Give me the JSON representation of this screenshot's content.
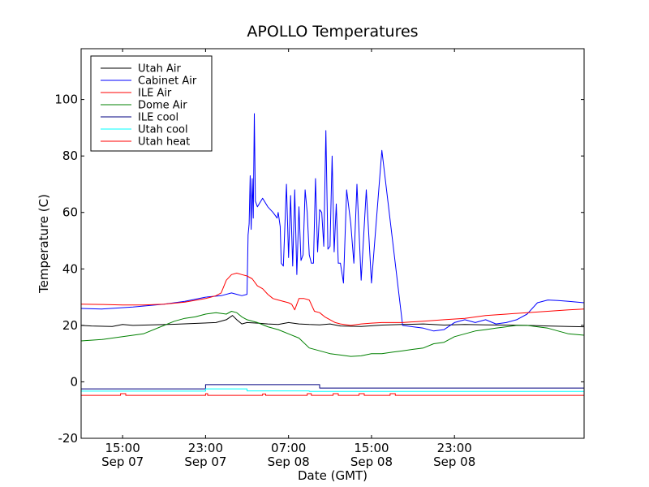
{
  "chart_data": {
    "type": "line",
    "title": "APOLLO Temperatures",
    "xlabel": "Date (GMT)",
    "ylabel": "Temperature (C)",
    "xlim": [
      11,
      59.5
    ],
    "ylim": [
      -20,
      118
    ],
    "yticks": [
      -20,
      0,
      20,
      40,
      60,
      80,
      100
    ],
    "xticks": [
      {
        "value": 15,
        "line1": "15:00",
        "line2": "Sep 07"
      },
      {
        "value": 23,
        "line1": "23:00",
        "line2": "Sep 07"
      },
      {
        "value": 31,
        "line1": "07:00",
        "line2": "Sep 08"
      },
      {
        "value": 39,
        "line1": "15:00",
        "line2": "Sep 08"
      },
      {
        "value": 47,
        "line1": "23:00",
        "line2": "Sep 08"
      }
    ],
    "legend_position": "top-left",
    "series": [
      {
        "name": "Utah Air",
        "color": "#000000",
        "x": [
          11,
          12,
          14,
          15,
          16,
          20,
          24,
          25,
          25.6,
          26,
          26.5,
          27,
          28,
          29,
          30,
          31,
          32,
          33,
          34,
          35,
          36,
          38,
          40,
          42,
          44,
          46,
          48,
          50,
          52,
          54,
          56,
          58,
          59.5
        ],
        "y": [
          20,
          19.8,
          19.6,
          20.3,
          20.0,
          20.4,
          21.0,
          22,
          23.5,
          22,
          20.5,
          21,
          20.8,
          20.5,
          20.3,
          21,
          20.5,
          20.3,
          20.2,
          20.5,
          19.8,
          19.6,
          20.1,
          20.3,
          20.5,
          20.1,
          20.3,
          20.2,
          20.1,
          20.0,
          19.8,
          19.6,
          19.5
        ]
      },
      {
        "name": "Cabinet Air",
        "color": "#0000ff",
        "x": [
          11,
          13,
          16,
          19,
          21,
          23,
          24.5,
          25.5,
          26,
          26.5,
          27,
          27.1,
          27.2,
          27.3,
          27.4,
          27.5,
          27.6,
          27.7,
          27.8,
          28,
          28.5,
          29,
          29.5,
          29.7,
          29.9,
          30,
          30.2,
          30.3,
          30.5,
          30.8,
          31,
          31.2,
          31.4,
          31.6,
          31.8,
          32,
          32.2,
          32.4,
          32.6,
          32.8,
          33,
          33.2,
          33.4,
          33.6,
          33.8,
          34,
          34.2,
          34.4,
          34.6,
          34.8,
          35,
          35.2,
          35.4,
          35.6,
          35.8,
          36,
          36.3,
          36.6,
          37,
          37.3,
          37.6,
          38,
          38.5,
          39,
          40,
          42,
          44,
          45,
          46,
          47,
          48,
          49,
          50,
          51,
          52,
          53,
          54,
          55,
          56,
          57,
          58,
          59.5
        ],
        "y": [
          26,
          25.8,
          26.5,
          27.5,
          28.5,
          30,
          30.5,
          31.5,
          31,
          30.5,
          31,
          52,
          56,
          73,
          54,
          72,
          58,
          95,
          64,
          62,
          65,
          62,
          60,
          59,
          58,
          60,
          55,
          42,
          41,
          70,
          44,
          66,
          41,
          68,
          38,
          62,
          43,
          45,
          68,
          60,
          45,
          42,
          42,
          72,
          46,
          61,
          60,
          48,
          89,
          47,
          48,
          80,
          46,
          63,
          42,
          42,
          35,
          68,
          56,
          42,
          70,
          36,
          68,
          35,
          82,
          20,
          19,
          18,
          18.5,
          21,
          22,
          21,
          22,
          20.5,
          21,
          22,
          24,
          28,
          29,
          28.8,
          28.5,
          28
        ]
      },
      {
        "name": "ILE Air",
        "color": "#ff0000",
        "x": [
          11,
          13,
          15,
          17,
          19,
          21,
          23,
          23.5,
          24,
          24.5,
          25,
          25.5,
          26,
          26.5,
          27,
          27.5,
          28,
          28.5,
          29,
          29.5,
          30,
          31,
          31.3,
          31.6,
          32,
          32.5,
          33,
          33.5,
          34,
          34.5,
          35,
          35.5,
          36,
          37,
          38,
          39,
          40,
          42,
          44,
          46,
          48,
          50,
          52,
          54,
          56,
          58,
          59.5
        ],
        "y": [
          27.5,
          27.4,
          27.2,
          27.2,
          27.5,
          28.2,
          29.5,
          30,
          30.5,
          31.5,
          36,
          38,
          38.5,
          38,
          37.5,
          36.5,
          34,
          33,
          31,
          29.5,
          29,
          28,
          27.5,
          25.5,
          29.5,
          29.5,
          29,
          25,
          24.5,
          23,
          22,
          21,
          20.5,
          20,
          20.5,
          20.8,
          21,
          21,
          21.5,
          22,
          22.5,
          23.5,
          24,
          24.5,
          25,
          25.5,
          25.8
        ]
      },
      {
        "name": "Dome Air",
        "color": "#008000",
        "x": [
          11,
          13,
          15,
          17,
          19,
          20,
          21,
          22,
          23,
          24,
          25,
          25.5,
          26,
          26.5,
          27,
          28,
          29,
          30,
          31,
          32,
          33,
          34,
          35,
          36,
          37,
          38,
          39,
          40,
          41,
          42,
          43,
          44,
          45,
          46,
          47,
          48,
          49,
          50,
          51,
          52,
          53,
          54,
          55,
          56,
          57,
          58,
          59.5
        ],
        "y": [
          14.5,
          15,
          16,
          17,
          20,
          21.5,
          22.5,
          23,
          24,
          24.5,
          24,
          25,
          24.5,
          23,
          22,
          21,
          19.5,
          18.5,
          17,
          15.5,
          12,
          11,
          10,
          9.5,
          9,
          9.2,
          10,
          10,
          10.5,
          11,
          11.5,
          12,
          13.5,
          14,
          16,
          17,
          18,
          18.5,
          19,
          19.5,
          20,
          20,
          19.5,
          19,
          18,
          17,
          16.5
        ]
      },
      {
        "name": "ILE cool",
        "color": "#000080",
        "x": [
          11,
          23,
          23,
          34,
          34,
          59.5
        ],
        "y": [
          -2.5,
          -2.5,
          -1,
          -1,
          -2.2,
          -2.2
        ]
      },
      {
        "name": "Utah cool",
        "color": "#00ffff",
        "x": [
          11,
          23,
          23,
          27,
          27,
          33,
          33,
          59.5
        ],
        "y": [
          -3.3,
          -3.3,
          -2.5,
          -2.5,
          -3.2,
          -3.2,
          -3.4,
          -3.4
        ]
      },
      {
        "name": "Utah heat",
        "color": "#ff0000",
        "x": [
          11,
          14.8,
          14.8,
          15.3,
          15.3,
          23,
          23,
          23.2,
          23.2,
          28.5,
          28.5,
          28.8,
          28.8,
          32.8,
          32.8,
          33.2,
          33.2,
          35.3,
          35.3,
          35.8,
          35.8,
          37.8,
          37.8,
          38.3,
          38.3,
          40.8,
          40.8,
          41.3,
          41.3,
          59.5
        ],
        "y": [
          -4.8,
          -4.8,
          -4.2,
          -4.2,
          -4.8,
          -4.8,
          -4.2,
          -4.2,
          -4.8,
          -4.8,
          -4.3,
          -4.3,
          -4.8,
          -4.8,
          -4.2,
          -4.2,
          -4.8,
          -4.8,
          -4.2,
          -4.2,
          -4.8,
          -4.8,
          -4.2,
          -4.2,
          -4.8,
          -4.8,
          -4.2,
          -4.2,
          -4.8,
          -4.8
        ]
      }
    ]
  }
}
